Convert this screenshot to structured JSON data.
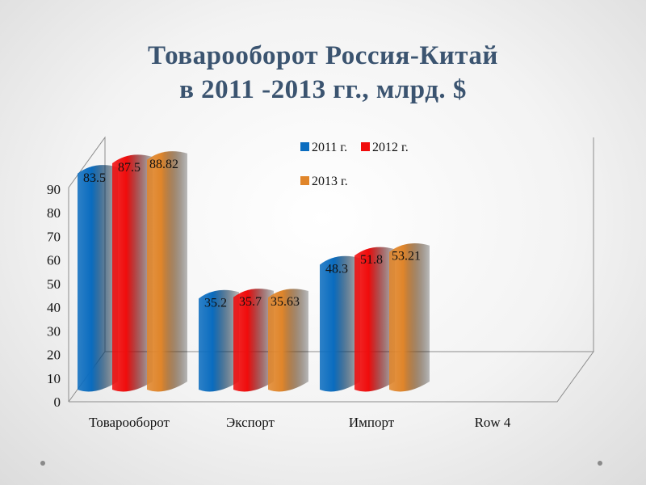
{
  "slide": {
    "title_line1": "Товарооборот Россия-Китай",
    "title_line2": "в 2011 -2013 гг., млрд. $"
  },
  "chart_data": {
    "type": "bar",
    "style": "3d-cylinder",
    "categories": [
      "Товарооборот",
      "Экспорт",
      "Импорт",
      "Row 4"
    ],
    "series": [
      {
        "name": "2011 г.",
        "color": "#0a6cbf",
        "values": [
          83.5,
          35.2,
          48.3,
          null
        ]
      },
      {
        "name": "2012 г.",
        "color": "#f00c0c",
        "values": [
          87.5,
          35.7,
          51.8,
          null
        ]
      },
      {
        "name": "2013 г.",
        "color": "#e0852a",
        "values": [
          88.82,
          35.63,
          53.21,
          null
        ]
      }
    ],
    "data_labels": [
      [
        "83.5",
        "35.2",
        "48.3"
      ],
      [
        "87.5",
        "35.7",
        "51.8"
      ],
      [
        "88.82",
        "35.63",
        "53.21"
      ]
    ],
    "yticks": [
      "0",
      "10",
      "20",
      "30",
      "40",
      "50",
      "60",
      "70",
      "80",
      "90"
    ],
    "ylim": [
      0,
      90
    ],
    "grid": false,
    "legend_position": "top-right"
  }
}
